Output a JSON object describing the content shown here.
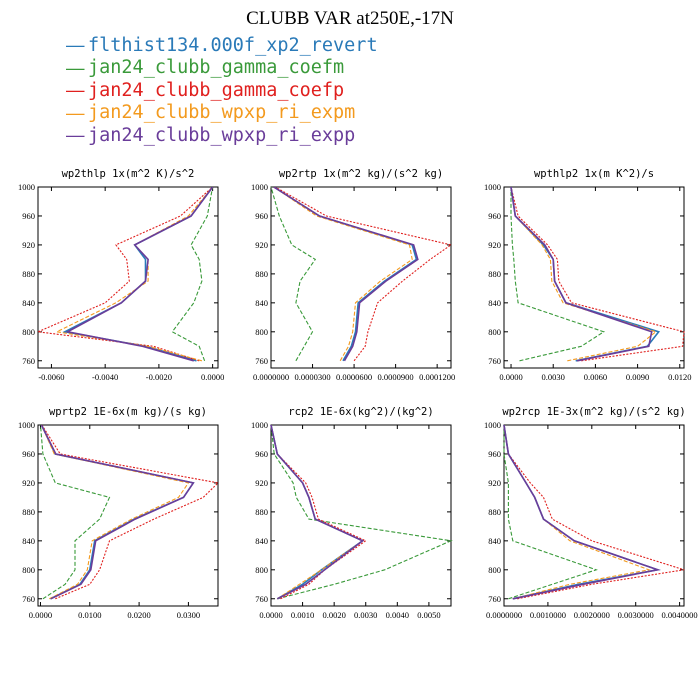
{
  "title": "CLUBB VAR at250E,-17N",
  "legend": [
    {
      "name": "flthist134.000f_xp2_revert",
      "color": "#2a7ab8",
      "dash": "solid"
    },
    {
      "name": "jan24_clubb_gamma_coefm",
      "color": "#3a9a3a",
      "dash": "dashed"
    },
    {
      "name": "jan24_clubb_gamma_coefp",
      "color": "#e0201e",
      "dash": "dotted"
    },
    {
      "name": "jan24_clubb_wpxp_ri_expm",
      "color": "#f39a1e",
      "dash": "dashed"
    },
    {
      "name": "jan24_clubb_wpxp_ri_expp",
      "color": "#6a3d9a",
      "dash": "solid"
    }
  ],
  "chart_data": [
    {
      "type": "line",
      "title": "wp2thlp  1x(m^2 K)/s^2",
      "xlim": [
        -0.0065,
        0.0002
      ],
      "ylim": [
        1000,
        750
      ],
      "xticks": [
        "-0.0060",
        "-0.0040",
        "-0.0020",
        "0.0000"
      ],
      "xtick_values": [
        -0.006,
        -0.004,
        -0.002,
        0.0
      ],
      "yticks": [
        760,
        800,
        840,
        880,
        920,
        960,
        1000
      ],
      "y": [
        760,
        780,
        800,
        840,
        870,
        900,
        920,
        960,
        1000
      ],
      "series": [
        {
          "name": "flthist134.000f_xp2_revert",
          "values": [
            -0.0006,
            -0.0025,
            -0.0055,
            -0.0034,
            -0.0025,
            -0.0025,
            -0.0029,
            -0.0008,
            0.0
          ]
        },
        {
          "name": "jan24_clubb_gamma_coefm",
          "values": [
            -0.0003,
            -0.0005,
            -0.0015,
            -0.0007,
            -0.0004,
            -0.0005,
            -0.0008,
            -0.0002,
            0.0
          ]
        },
        {
          "name": "jan24_clubb_gamma_coefp",
          "values": [
            -0.0005,
            -0.0022,
            -0.0065,
            -0.004,
            -0.0031,
            -0.0032,
            -0.0036,
            -0.0012,
            0.0
          ]
        },
        {
          "name": "jan24_clubb_wpxp_ri_expm",
          "values": [
            -0.0004,
            -0.0024,
            -0.0058,
            -0.0036,
            -0.0024,
            -0.0024,
            -0.0029,
            -0.0009,
            0.0
          ]
        },
        {
          "name": "jan24_clubb_wpxp_ri_expp",
          "values": [
            -0.0007,
            -0.0026,
            -0.0054,
            -0.0034,
            -0.0025,
            -0.0024,
            -0.0029,
            -0.0008,
            0.0
          ]
        }
      ]
    },
    {
      "type": "line",
      "title": "wp2rtp  1x(m^2 kg)/(s^2 kg)",
      "xlim": [
        0.0,
        0.00013
      ],
      "ylim": [
        1000,
        750
      ],
      "xticks": [
        "0.0000000",
        "0.0000300",
        "0.0000600",
        "0.0000900",
        "0.0001200"
      ],
      "xtick_values": [
        0.0,
        3e-05,
        6e-05,
        9e-05,
        0.00012
      ],
      "yticks": [
        760,
        800,
        840,
        880,
        920,
        960,
        1000
      ],
      "y": [
        760,
        780,
        800,
        840,
        870,
        900,
        920,
        960,
        1000
      ],
      "series": [
        {
          "name": "flthist134.000f_xp2_revert",
          "values": [
            5.2e-05,
            5.8e-05,
            6.1e-05,
            6.3e-05,
            8.2e-05,
            0.000105,
            0.000102,
            3.5e-05,
            2e-06
          ]
        },
        {
          "name": "jan24_clubb_gamma_coefm",
          "values": [
            1.8e-05,
            2.4e-05,
            3e-05,
            1.8e-05,
            2.1e-05,
            3.2e-05,
            1.5e-05,
            6e-06,
            0.0
          ]
        },
        {
          "name": "jan24_clubb_gamma_coefp",
          "values": [
            6e-05,
            6.8e-05,
            7e-05,
            7.7e-05,
            9.5e-05,
            0.000115,
            0.00013,
            4e-05,
            3e-06
          ]
        },
        {
          "name": "jan24_clubb_wpxp_ri_expm",
          "values": [
            5e-05,
            5.6e-05,
            5.9e-05,
            6.1e-05,
            7.9e-05,
            0.000102,
            0.0001,
            3.3e-05,
            2e-06
          ]
        },
        {
          "name": "jan24_clubb_wpxp_ri_expp",
          "values": [
            5.3e-05,
            5.9e-05,
            6.2e-05,
            6.4e-05,
            8.3e-05,
            0.000106,
            0.000103,
            3.5e-05,
            2e-06
          ]
        }
      ]
    },
    {
      "type": "line",
      "title": "wpthlp2  1x(m K^2)/s",
      "xlim": [
        -0.0005,
        0.0123
      ],
      "ylim": [
        1000,
        750
      ],
      "xticks": [
        "0.0000",
        "0.0030",
        "0.0060",
        "0.0090",
        "0.0120"
      ],
      "xtick_values": [
        0.0,
        0.003,
        0.006,
        0.009,
        0.012
      ],
      "yticks": [
        760,
        800,
        840,
        880,
        920,
        960,
        1000
      ],
      "y": [
        760,
        780,
        800,
        840,
        870,
        900,
        920,
        960,
        1000
      ],
      "series": [
        {
          "name": "flthist134.000f_xp2_revert",
          "values": [
            0.0046,
            0.0097,
            0.0105,
            0.0039,
            0.0031,
            0.003,
            0.0023,
            0.0003,
            0.0
          ]
        },
        {
          "name": "jan24_clubb_gamma_coefm",
          "values": [
            0.0006,
            0.005,
            0.0066,
            0.0005,
            0.0003,
            0.0002,
            0.0001,
            0.0,
            0.0
          ]
        },
        {
          "name": "jan24_clubb_gamma_coefp",
          "values": [
            0.005,
            0.0122,
            0.0123,
            0.0043,
            0.0034,
            0.0033,
            0.0026,
            0.0005,
            0.0
          ]
        },
        {
          "name": "jan24_clubb_wpxp_ri_expm",
          "values": [
            0.004,
            0.009,
            0.0103,
            0.0037,
            0.0029,
            0.0028,
            0.0022,
            0.0003,
            0.0
          ]
        },
        {
          "name": "jan24_clubb_wpxp_ri_expp",
          "values": [
            0.0047,
            0.0098,
            0.01,
            0.0039,
            0.0031,
            0.003,
            0.0024,
            0.0003,
            0.0
          ]
        }
      ]
    },
    {
      "type": "line",
      "title": "wprtp2  1E-6x(m kg)/(s kg)",
      "xlim": [
        -0.0005,
        0.036
      ],
      "ylim": [
        1000,
        750
      ],
      "xticks": [
        "0.0000",
        "0.0100",
        "0.0200",
        "0.0300"
      ],
      "xtick_values": [
        0.0,
        0.01,
        0.02,
        0.03
      ],
      "yticks": [
        760,
        800,
        840,
        880,
        920,
        960,
        1000
      ],
      "y": [
        760,
        780,
        800,
        840,
        870,
        900,
        920,
        960,
        1000
      ],
      "series": [
        {
          "name": "flthist134.000f_xp2_revert",
          "values": [
            0.002,
            0.008,
            0.01,
            0.011,
            0.019,
            0.029,
            0.031,
            0.003,
            0.0002
          ]
        },
        {
          "name": "jan24_clubb_gamma_coefm",
          "values": [
            0.0005,
            0.005,
            0.007,
            0.007,
            0.012,
            0.014,
            0.003,
            0.0005,
            0.0
          ]
        },
        {
          "name": "jan24_clubb_gamma_coefp",
          "values": [
            0.003,
            0.01,
            0.012,
            0.014,
            0.023,
            0.033,
            0.036,
            0.004,
            0.0003
          ]
        },
        {
          "name": "jan24_clubb_wpxp_ri_expm",
          "values": [
            0.0018,
            0.0075,
            0.0095,
            0.0105,
            0.0185,
            0.028,
            0.03,
            0.0028,
            0.0002
          ]
        },
        {
          "name": "jan24_clubb_wpxp_ri_expp",
          "values": [
            0.0021,
            0.0082,
            0.0102,
            0.0112,
            0.0192,
            0.029,
            0.031,
            0.0031,
            0.0002
          ]
        }
      ]
    },
    {
      "type": "line",
      "title": "rcp2  1E-6x(kg^2)/(kg^2)",
      "xlim": [
        0.0,
        0.0057
      ],
      "ylim": [
        1000,
        750
      ],
      "xticks": [
        "0.0000",
        "0.0010",
        "0.0020",
        "0.0030",
        "0.0040",
        "0.0050"
      ],
      "xtick_values": [
        0.0,
        0.001,
        0.002,
        0.003,
        0.004,
        0.005
      ],
      "yticks": [
        760,
        800,
        840,
        880,
        920,
        960,
        1000
      ],
      "y": [
        760,
        780,
        800,
        840,
        870,
        900,
        920,
        960,
        1000
      ],
      "series": [
        {
          "name": "flthist134.000f_xp2_revert",
          "values": [
            0.0002,
            0.001,
            0.0016,
            0.0029,
            0.0014,
            0.0012,
            0.001,
            0.0002,
            0.0
          ]
        },
        {
          "name": "jan24_clubb_gamma_coefm",
          "values": [
            0.0002,
            0.002,
            0.0036,
            0.0057,
            0.0012,
            0.0008,
            0.0007,
            0.0001,
            0.0
          ]
        },
        {
          "name": "jan24_clubb_gamma_coefp",
          "values": [
            0.0003,
            0.0012,
            0.0017,
            0.003,
            0.0015,
            0.0013,
            0.0011,
            0.0002,
            0.0
          ]
        },
        {
          "name": "jan24_clubb_wpxp_ri_expm",
          "values": [
            0.0002,
            0.0009,
            0.0016,
            0.0029,
            0.0014,
            0.0012,
            0.001,
            0.0002,
            0.0
          ]
        },
        {
          "name": "jan24_clubb_wpxp_ri_expp",
          "values": [
            0.0002,
            0.0011,
            0.0017,
            0.0029,
            0.0014,
            0.0012,
            0.001,
            0.0002,
            0.0
          ]
        }
      ]
    },
    {
      "type": "line",
      "title": "wp2rcp  1E-3x(m^2 kg)/(s^2 kg)",
      "xlim": [
        0.0,
        0.0041
      ],
      "ylim": [
        1000,
        750
      ],
      "xticks": [
        "0.0000000",
        "0.0010000",
        "0.0020000",
        "0.0030000",
        "0.0040000"
      ],
      "xtick_values": [
        0.0,
        0.001,
        0.002,
        0.003,
        0.004
      ],
      "yticks": [
        760,
        800,
        840,
        880,
        920,
        960,
        1000
      ],
      "y": [
        760,
        780,
        800,
        840,
        870,
        900,
        920,
        960,
        1000
      ],
      "series": [
        {
          "name": "flthist134.000f_xp2_revert",
          "values": [
            0.0002,
            0.0017,
            0.0035,
            0.0016,
            0.0009,
            0.0007,
            0.0005,
            0.0001,
            0.0
          ]
        },
        {
          "name": "jan24_clubb_gamma_coefm",
          "values": [
            0.0001,
            0.0011,
            0.0021,
            0.0002,
            0.0001,
            0.0001,
            0.0001,
            0.0,
            0.0
          ]
        },
        {
          "name": "jan24_clubb_gamma_coefp",
          "values": [
            0.0003,
            0.002,
            0.0041,
            0.002,
            0.0011,
            0.0009,
            0.0006,
            0.0001,
            0.0
          ]
        },
        {
          "name": "jan24_clubb_wpxp_ri_expm",
          "values": [
            0.0002,
            0.0015,
            0.0033,
            0.0015,
            0.0009,
            0.0007,
            0.0005,
            0.0001,
            0.0
          ]
        },
        {
          "name": "jan24_clubb_wpxp_ri_expp",
          "values": [
            0.0002,
            0.0018,
            0.0035,
            0.0016,
            0.0009,
            0.0007,
            0.0005,
            0.0001,
            0.0
          ]
        }
      ]
    }
  ]
}
